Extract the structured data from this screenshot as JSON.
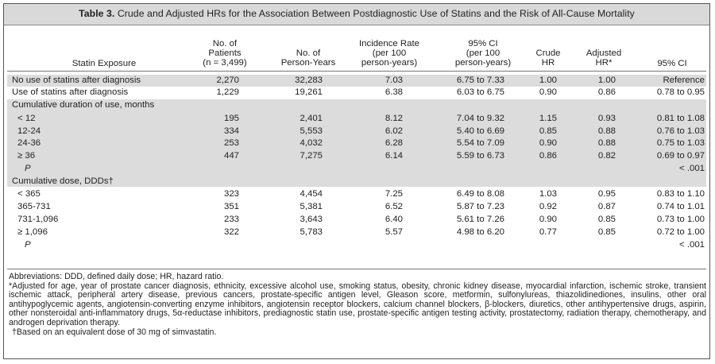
{
  "title": {
    "table_number": "Table 3.",
    "caption": "Crude and Adjusted HRs for the Association Between Postdiagnostic Use of Statins and the Risk of All-Cause Mortality"
  },
  "headers": {
    "statin_exposure": "Statin Exposure",
    "patients_1": "No. of",
    "patients_2": "Patients",
    "patients_3": "(n = 3,499)",
    "person_years_1": "No. of",
    "person_years_2": "Person-Years",
    "incidence_1": "Incidence Rate",
    "incidence_2": "(per 100",
    "incidence_3": "person-years)",
    "ci_rate_1": "95% CI",
    "ci_rate_2": "(per 100",
    "ci_rate_3": "person-years)",
    "crude_1": "Crude",
    "crude_2": "HR",
    "adjusted_1": "Adjusted",
    "adjusted_2": "HR*",
    "ci_hr": "95% CI"
  },
  "rows": [
    {
      "label": "No use of statins after diagnosis",
      "patients": "2,270",
      "person_years": "32,283",
      "incidence": "7.03",
      "ci_rate": "6.75 to 7.33",
      "crude": "1.00",
      "adjusted": "1.00",
      "ci_hr": "Reference"
    },
    {
      "label": "Use of statins after diagnosis",
      "patients": "1,229",
      "person_years": "19,261",
      "incidence": "6.38",
      "ci_rate": "6.03 to 6.75",
      "crude": "0.90",
      "adjusted": "0.86",
      "ci_hr": "0.78 to 0.95"
    },
    {
      "label": "Cumulative duration of use, months",
      "patients": "",
      "person_years": "",
      "incidence": "",
      "ci_rate": "",
      "crude": "",
      "adjusted": "",
      "ci_hr": ""
    },
    {
      "label": "< 12",
      "patients": "195",
      "person_years": "2,401",
      "incidence": "8.12",
      "ci_rate": "7.04 to 9.32",
      "crude": "1.15",
      "adjusted": "0.93",
      "ci_hr": "0.81 to 1.08"
    },
    {
      "label": "12-24",
      "patients": "334",
      "person_years": "5,553",
      "incidence": "6.02",
      "ci_rate": "5.40 to 6.69",
      "crude": "0.85",
      "adjusted": "0.88",
      "ci_hr": "0.76 to 1.03"
    },
    {
      "label": "24-36",
      "patients": "253",
      "person_years": "4,032",
      "incidence": "6.28",
      "ci_rate": "5.54 to 7.09",
      "crude": "0.90",
      "adjusted": "0.88",
      "ci_hr": "0.75 to 1.03"
    },
    {
      "label": "≥ 36",
      "patients": "447",
      "person_years": "7,275",
      "incidence": "6.14",
      "ci_rate": "5.59 to 6.73",
      "crude": "0.86",
      "adjusted": "0.82",
      "ci_hr": "0.69 to 0.97"
    },
    {
      "label": "P",
      "patients": "",
      "person_years": "",
      "incidence": "",
      "ci_rate": "",
      "crude": "",
      "adjusted": "",
      "ci_hr": "< .001"
    },
    {
      "label": "Cumulative dose, DDDs†",
      "patients": "",
      "person_years": "",
      "incidence": "",
      "ci_rate": "",
      "crude": "",
      "adjusted": "",
      "ci_hr": ""
    },
    {
      "label": "< 365",
      "patients": "323",
      "person_years": "4,454",
      "incidence": "7.25",
      "ci_rate": "6.49 to 8.08",
      "crude": "1.03",
      "adjusted": "0.95",
      "ci_hr": "0.83 to 1.10"
    },
    {
      "label": "365-731",
      "patients": "351",
      "person_years": "5,381",
      "incidence": "6.52",
      "ci_rate": "5.87 to 7.23",
      "crude": "0.92",
      "adjusted": "0.87",
      "ci_hr": "0.74 to 1.01"
    },
    {
      "label": "731-1,096",
      "patients": "233",
      "person_years": "3,643",
      "incidence": "6.40",
      "ci_rate": "5.61 to 7.26",
      "crude": "0.90",
      "adjusted": "0.85",
      "ci_hr": "0.73 to 1.00"
    },
    {
      "label": "≥ 1,096",
      "patients": "322",
      "person_years": "5,783",
      "incidence": "5.57",
      "ci_rate": "4.98 to 6.20",
      "crude": "0.77",
      "adjusted": "0.85",
      "ci_hr": "0.72 to 1.00"
    },
    {
      "label": "P",
      "patients": "",
      "person_years": "",
      "incidence": "",
      "ci_rate": "",
      "crude": "",
      "adjusted": "",
      "ci_hr": "< .001"
    }
  ],
  "notes": {
    "abbreviations": "Abbreviations: DDD, defined daily dose; HR, hazard ratio.",
    "adjusted": "*Adjusted for age, year of prostate cancer diagnosis, ethnicity, excessive alcohol use, smoking status, obesity, chronic kidney disease, myocardial infarction, ischemic stroke, transient ischemic attack, peripheral artery disease, previous cancers, prostate-specific antigen level, Gleason score, metformin, sulfonylureas, thiazolidinediones, insulins, other oral antihypoglycemic agents, angiotensin-converting enzyme inhibitors, angiotensin receptor blockers, calcium channel blockers, β-blockers, diuretics, other antihypertensive drugs, aspirin, other nonsteroidal anti-inflammatory drugs, 5α-reductase inhibitors, prediagnostic statin use, prostate-specific antigen testing activity, prostatectomy, radiation therapy, chemotherapy, and androgen deprivation therapy.",
    "dagger": "†Based on an equivalent dose of 30 mg of simvastatin."
  }
}
